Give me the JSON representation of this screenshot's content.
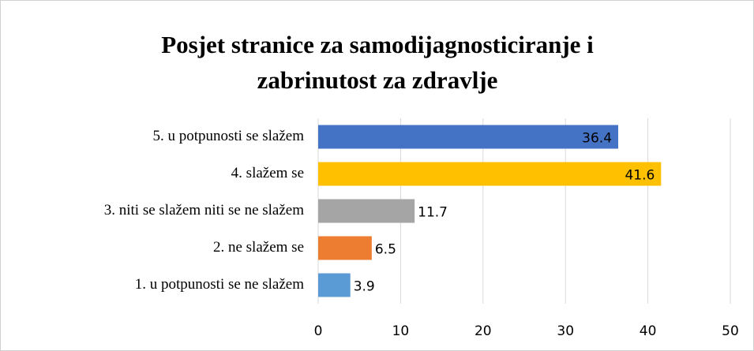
{
  "chart_data": {
    "type": "bar",
    "orientation": "horizontal",
    "title": "Posjet stranice za samodijagnosticiranje i zabrinutost za zdravlje",
    "categories": [
      "5. u potpunosti se slažem",
      "4. slažem se",
      "3. niti se slažem niti se ne slažem",
      "2. ne slažem se",
      "1. u potpunosti se ne slažem"
    ],
    "values": [
      36.4,
      41.6,
      11.7,
      6.5,
      3.9
    ],
    "colors": [
      "#4472c4",
      "#ffc000",
      "#a5a5a5",
      "#ed7d31",
      "#5b9bd5"
    ],
    "xlim": [
      0,
      50
    ],
    "xticks": [
      0,
      10,
      20,
      30,
      40,
      50
    ],
    "grid": true
  }
}
